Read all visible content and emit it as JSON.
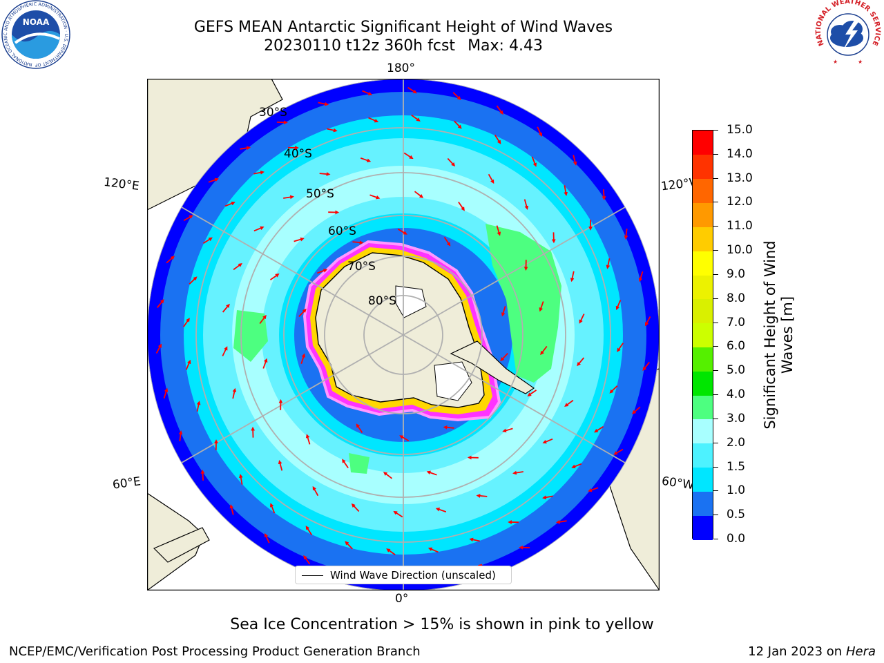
{
  "title": {
    "line1": "GEFS MEAN Antarctic Significant Height of Wind Waves",
    "line2_run": "20230110 t12z 360h fcst",
    "line2_max": "Max: 4.43"
  },
  "logos": {
    "noaa": {
      "text": "NOAA",
      "ring_text": "NATIONAL OCEANIC AND ATMOSPHERIC ADMINISTRATION · U.S. DEPARTMENT OF COMMERCE"
    },
    "nws": {
      "ring_text": "NATIONAL WEATHER SERVICE"
    }
  },
  "map": {
    "projection": "south-polar-stereographic",
    "longitude_labels": {
      "top": "180°",
      "bottom": "0°",
      "upper_left": "120°E",
      "upper_right": "120°W",
      "lower_left": "60°E",
      "lower_right": "60°W"
    },
    "latitude_labels": [
      "30°S",
      "40°S",
      "50°S",
      "60°S",
      "70°S",
      "80°S"
    ],
    "legend_label": "Wind Wave Direction (unscaled)",
    "colors": {
      "land": "#efedd9",
      "ocean_lt1": "#1a72f2",
      "ocean_lt1_5": "#00e6ff",
      "ocean_lt2": "#66f2ff",
      "ocean_lt3": "#a8ffff",
      "ocean_lt4": "#4dff80",
      "arrow": "#ff0000",
      "ice": "#ff33ff",
      "grid": "#b0b0b0"
    }
  },
  "colorbar": {
    "label": "Significant Height of Wind Waves [m]",
    "label_line1": "Significant Height of Wind",
    "label_line2": "Waves [m]",
    "ticks": [
      "0.0",
      "0.5",
      "1.0",
      "1.5",
      "2.0",
      "3.0",
      "4.0",
      "5.0",
      "6.0",
      "7.0",
      "8.0",
      "9.0",
      "10.0",
      "11.0",
      "12.0",
      "13.0",
      "14.0",
      "15.0"
    ],
    "colors": [
      "#0000ff",
      "#1a72f2",
      "#00e6ff",
      "#4df2ff",
      "#a8ffff",
      "#4dff80",
      "#00e600",
      "#55f000",
      "#ccff00",
      "#d9f000",
      "#ecf200",
      "#ffff00",
      "#ffcc00",
      "#ff9900",
      "#ff6600",
      "#ff3300",
      "#ff0000"
    ]
  },
  "footnote": "Sea Ice Concentration > 15% is shown in pink to yellow",
  "credit_left": "NCEP/EMC/Verification Post Processing Product Generation Branch",
  "credit_date": "12 Jan 2023 on",
  "credit_machine": "Hera"
}
